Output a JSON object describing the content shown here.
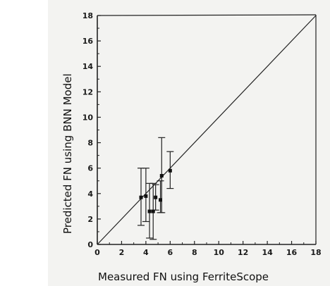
{
  "chart_data": {
    "type": "scatter",
    "title": "",
    "xlabel": "Measured FN using FerriteScope",
    "ylabel": "Predicted FN using BNN Model",
    "xlim": [
      0,
      18
    ],
    "ylim": [
      0,
      18
    ],
    "xticks": [
      "0",
      "2",
      "4",
      "6",
      "8",
      "10",
      "12",
      "14",
      "16",
      "18"
    ],
    "yticks": [
      "0",
      "2",
      "4",
      "6",
      "8",
      "10",
      "12",
      "14",
      "16",
      "18"
    ],
    "grid": false,
    "reference_line": {
      "from": [
        0,
        0
      ],
      "to": [
        18,
        18
      ]
    },
    "points": [
      {
        "x": 3.6,
        "y": 3.7,
        "ylow": 1.5,
        "yhigh": 6.0
      },
      {
        "x": 4.0,
        "y": 3.8,
        "ylow": 1.8,
        "yhigh": 6.0
      },
      {
        "x": 4.3,
        "y": 2.6,
        "ylow": 0.5,
        "yhigh": 4.8
      },
      {
        "x": 4.6,
        "y": 2.6,
        "ylow": 0.4,
        "yhigh": 4.8
      },
      {
        "x": 4.8,
        "y": 3.7,
        "ylow": 2.7,
        "yhigh": 4.7
      },
      {
        "x": 5.2,
        "y": 3.5,
        "ylow": 2.5,
        "yhigh": 5.0
      },
      {
        "x": 5.3,
        "y": 5.4,
        "ylow": 2.5,
        "yhigh": 8.4
      },
      {
        "x": 6.0,
        "y": 5.8,
        "ylow": 4.4,
        "yhigh": 7.3
      }
    ],
    "colors": {
      "marker": "#111111",
      "line": "#222222",
      "background": "#f3f3f1"
    }
  }
}
